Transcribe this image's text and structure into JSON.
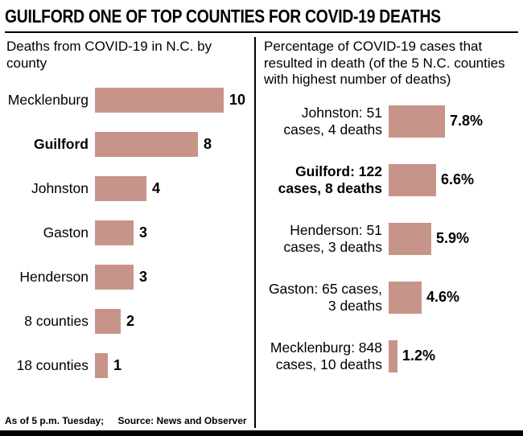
{
  "title": "GUILFORD ONE OF TOP COUNTIES FOR COVID-19 DEATHS",
  "footer": {
    "asof": "As of 5 p.m. Tuesday;",
    "source": "Source: News and Observer"
  },
  "colors": {
    "bar_fill": "#c7948a",
    "text": "#000000",
    "background": "#ffffff"
  },
  "chart_data": [
    {
      "type": "bar",
      "orientation": "horizontal",
      "title": "Deaths from COVID-19 in N.C. by county",
      "categories": [
        "Mecklenburg",
        "Guilford",
        "Johnston",
        "Gaston",
        "Henderson",
        "8 counties",
        "18 counties"
      ],
      "values": [
        10,
        8,
        4,
        3,
        3,
        2,
        1
      ],
      "highlight_category": "Guilford",
      "xlim": [
        0,
        10
      ],
      "grid": false,
      "value_labels_shown": true
    },
    {
      "type": "bar",
      "orientation": "horizontal",
      "title": "Percentage of COVID-19 cases that resulted in death (of the 5 N.C. counties with highest number of deaths)",
      "categories": [
        "Johnston: 51 cases, 4 deaths",
        "Guilford: 122 cases, 8 deaths",
        "Henderson: 51 cases, 3 deaths",
        "Gaston: 65 cases, 3 deaths",
        "Mecklenburg: 848 cases, 10 deaths"
      ],
      "values": [
        7.8,
        6.6,
        5.9,
        4.6,
        1.2
      ],
      "value_labels": [
        "7.8%",
        "6.6%",
        "5.9%",
        "4.6%",
        "1.2%"
      ],
      "highlight_category": "Guilford: 122 cases, 8 deaths",
      "xlim": [
        0,
        8
      ],
      "grid": false,
      "value_labels_shown": true
    }
  ]
}
